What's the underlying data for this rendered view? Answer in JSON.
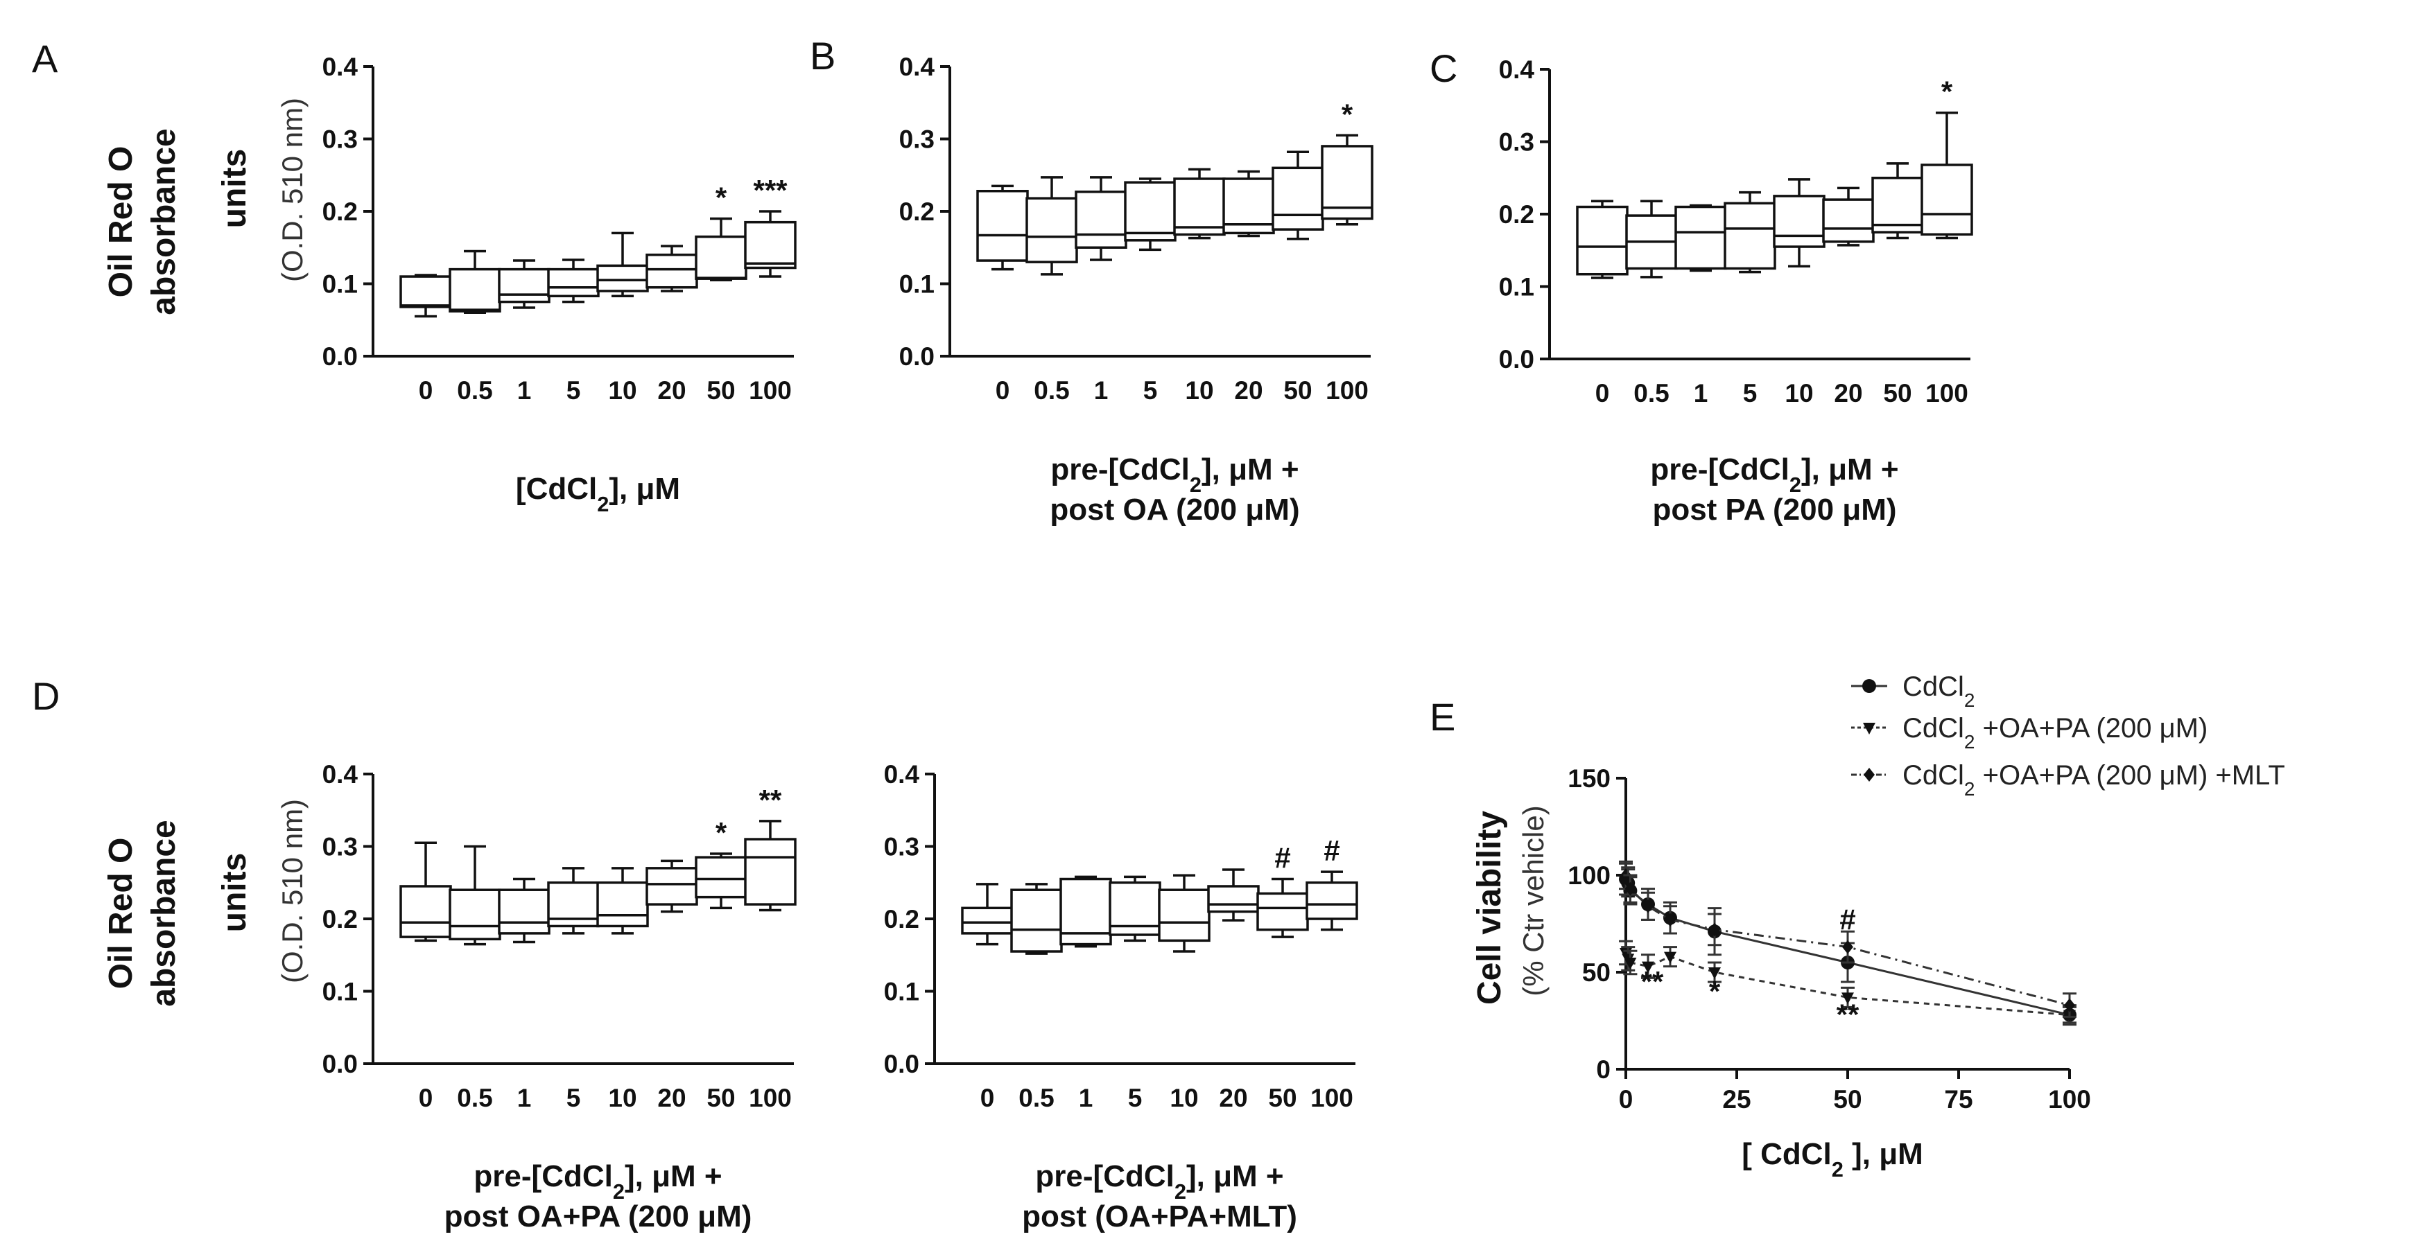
{
  "panel_letters": [
    "A",
    "B",
    "C",
    "D",
    "E"
  ],
  "shared": {
    "ylabel_bold": [
      "Oil Red O",
      "absorbance",
      "units"
    ],
    "ylabel_light": "(O.D. 510 nm)",
    "x_categories": [
      "0",
      "0.5",
      "1",
      "5",
      "10",
      "20",
      "50",
      "100"
    ],
    "y_ticks": [
      "0.0",
      "0.1",
      "0.2",
      "0.3",
      "0.4"
    ]
  },
  "chart_data": [
    {
      "id": "A",
      "type": "box",
      "ylim": [
        0,
        0.4
      ],
      "xlabel": [
        "[CdCl2], μM"
      ],
      "boxes": [
        {
          "min": 0.055,
          "q1": 0.068,
          "median": 0.07,
          "q3": 0.11,
          "max": 0.112
        },
        {
          "min": 0.06,
          "q1": 0.062,
          "median": 0.064,
          "q3": 0.12,
          "max": 0.145
        },
        {
          "min": 0.067,
          "q1": 0.075,
          "median": 0.085,
          "q3": 0.12,
          "max": 0.132
        },
        {
          "min": 0.075,
          "q1": 0.083,
          "median": 0.095,
          "q3": 0.12,
          "max": 0.133
        },
        {
          "min": 0.083,
          "q1": 0.09,
          "median": 0.105,
          "q3": 0.125,
          "max": 0.17
        },
        {
          "min": 0.09,
          "q1": 0.095,
          "median": 0.12,
          "q3": 0.14,
          "max": 0.152
        },
        {
          "min": 0.105,
          "q1": 0.107,
          "median": 0.108,
          "q3": 0.165,
          "max": 0.19
        },
        {
          "min": 0.11,
          "q1": 0.122,
          "median": 0.128,
          "q3": 0.185,
          "max": 0.2
        }
      ],
      "annotations": [
        {
          "cat": 6,
          "text": "*"
        },
        {
          "cat": 7,
          "text": "***"
        }
      ]
    },
    {
      "id": "B",
      "type": "box",
      "ylim": [
        0,
        0.4
      ],
      "xlabel": [
        "pre-[CdCl2], μM +",
        "post OA (200 μM)"
      ],
      "boxes": [
        {
          "min": 0.12,
          "q1": 0.132,
          "median": 0.167,
          "q3": 0.228,
          "max": 0.235
        },
        {
          "min": 0.113,
          "q1": 0.13,
          "median": 0.165,
          "q3": 0.218,
          "max": 0.247
        },
        {
          "min": 0.133,
          "q1": 0.15,
          "median": 0.168,
          "q3": 0.227,
          "max": 0.247
        },
        {
          "min": 0.147,
          "q1": 0.16,
          "median": 0.17,
          "q3": 0.24,
          "max": 0.245
        },
        {
          "min": 0.163,
          "q1": 0.168,
          "median": 0.178,
          "q3": 0.245,
          "max": 0.258
        },
        {
          "min": 0.166,
          "q1": 0.17,
          "median": 0.182,
          "q3": 0.245,
          "max": 0.255
        },
        {
          "min": 0.162,
          "q1": 0.175,
          "median": 0.195,
          "q3": 0.26,
          "max": 0.282
        },
        {
          "min": 0.182,
          "q1": 0.19,
          "median": 0.205,
          "q3": 0.29,
          "max": 0.305
        }
      ],
      "annotations": [
        {
          "cat": 7,
          "text": "*"
        }
      ]
    },
    {
      "id": "C",
      "type": "box",
      "ylim": [
        0,
        0.4
      ],
      "xlabel": [
        "pre-[CdCl2], μM +",
        "post PA (200 μM)"
      ],
      "boxes": [
        {
          "min": 0.112,
          "q1": 0.117,
          "median": 0.155,
          "q3": 0.21,
          "max": 0.218
        },
        {
          "min": 0.113,
          "q1": 0.125,
          "median": 0.162,
          "q3": 0.198,
          "max": 0.218
        },
        {
          "min": 0.122,
          "q1": 0.125,
          "median": 0.175,
          "q3": 0.21,
          "max": 0.212
        },
        {
          "min": 0.12,
          "q1": 0.125,
          "median": 0.18,
          "q3": 0.215,
          "max": 0.23
        },
        {
          "min": 0.128,
          "q1": 0.155,
          "median": 0.17,
          "q3": 0.225,
          "max": 0.248
        },
        {
          "min": 0.157,
          "q1": 0.162,
          "median": 0.18,
          "q3": 0.22,
          "max": 0.236
        },
        {
          "min": 0.167,
          "q1": 0.175,
          "median": 0.185,
          "q3": 0.25,
          "max": 0.27
        },
        {
          "min": 0.167,
          "q1": 0.172,
          "median": 0.2,
          "q3": 0.268,
          "max": 0.34
        }
      ],
      "annotations": [
        {
          "cat": 7,
          "text": "*"
        }
      ]
    },
    {
      "id": "D1",
      "type": "box",
      "ylim": [
        0,
        0.4
      ],
      "xlabel": [
        "pre-[CdCl2], μM +",
        "post OA+PA (200 μM)"
      ],
      "boxes": [
        {
          "min": 0.17,
          "q1": 0.175,
          "median": 0.195,
          "q3": 0.245,
          "max": 0.305
        },
        {
          "min": 0.165,
          "q1": 0.172,
          "median": 0.19,
          "q3": 0.24,
          "max": 0.3
        },
        {
          "min": 0.168,
          "q1": 0.18,
          "median": 0.195,
          "q3": 0.24,
          "max": 0.255
        },
        {
          "min": 0.18,
          "q1": 0.19,
          "median": 0.2,
          "q3": 0.25,
          "max": 0.27
        },
        {
          "min": 0.18,
          "q1": 0.19,
          "median": 0.205,
          "q3": 0.25,
          "max": 0.27
        },
        {
          "min": 0.21,
          "q1": 0.22,
          "median": 0.248,
          "q3": 0.27,
          "max": 0.28
        },
        {
          "min": 0.215,
          "q1": 0.23,
          "median": 0.255,
          "q3": 0.285,
          "max": 0.29
        },
        {
          "min": 0.212,
          "q1": 0.22,
          "median": 0.285,
          "q3": 0.31,
          "max": 0.335
        }
      ],
      "annotations": [
        {
          "cat": 6,
          "text": "*"
        },
        {
          "cat": 7,
          "text": "**"
        }
      ]
    },
    {
      "id": "D2",
      "type": "box",
      "ylim": [
        0,
        0.4
      ],
      "xlabel": [
        "pre-[CdCl2], μM +",
        "post (OA+PA+MLT)"
      ],
      "boxes": [
        {
          "min": 0.165,
          "q1": 0.18,
          "median": 0.195,
          "q3": 0.215,
          "max": 0.248
        },
        {
          "min": 0.152,
          "q1": 0.155,
          "median": 0.185,
          "q3": 0.24,
          "max": 0.248
        },
        {
          "min": 0.162,
          "q1": 0.165,
          "median": 0.18,
          "q3": 0.255,
          "max": 0.258
        },
        {
          "min": 0.17,
          "q1": 0.178,
          "median": 0.19,
          "q3": 0.25,
          "max": 0.258
        },
        {
          "min": 0.155,
          "q1": 0.17,
          "median": 0.195,
          "q3": 0.24,
          "max": 0.26
        },
        {
          "min": 0.198,
          "q1": 0.21,
          "median": 0.22,
          "q3": 0.245,
          "max": 0.268
        },
        {
          "min": 0.175,
          "q1": 0.185,
          "median": 0.215,
          "q3": 0.235,
          "max": 0.255
        },
        {
          "min": 0.185,
          "q1": 0.2,
          "median": 0.22,
          "q3": 0.25,
          "max": 0.265
        }
      ],
      "annotations": [
        {
          "cat": 6,
          "text": "#"
        },
        {
          "cat": 7,
          "text": "#"
        }
      ]
    },
    {
      "id": "E",
      "type": "line",
      "xlim": [
        0,
        100
      ],
      "ylim": [
        0,
        150
      ],
      "x_ticks": [
        "0",
        "25",
        "50",
        "75",
        "100"
      ],
      "y_ticks": [
        "0",
        "50",
        "100",
        "150"
      ],
      "xlabel": "[ CdCl2 ], μM",
      "ylabel_bold": "Cell viability",
      "ylabel_light": "(% Ctr vehicle)",
      "series": [
        {
          "name": "CdCl2",
          "x": [
            0,
            0.5,
            1,
            5,
            10,
            20,
            50,
            100
          ],
          "y": [
            98,
            96,
            92,
            85,
            78,
            71,
            55,
            28
          ],
          "err": [
            8,
            7,
            7,
            8,
            8,
            12,
            10,
            5
          ]
        },
        {
          "name": "CdCl2 +OA+PA (200 μM)",
          "x": [
            0,
            0.5,
            1,
            5,
            10,
            20,
            50,
            100
          ],
          "y": [
            60,
            57,
            55,
            53,
            58,
            50,
            37,
            28
          ],
          "err": [
            6,
            6,
            6,
            6,
            5,
            5,
            5,
            4
          ]
        },
        {
          "name": "CdCl2 +OA+PA (200 μM) +MLT",
          "x": [
            0,
            0.5,
            1,
            5,
            10,
            20,
            50,
            100
          ],
          "y": [
            100,
            97,
            93,
            84,
            77,
            72,
            63,
            33
          ],
          "err": [
            7,
            7,
            7,
            7,
            7,
            8,
            8,
            6
          ]
        }
      ],
      "annotations": [
        {
          "x": 5,
          "y": 40,
          "text": "**"
        },
        {
          "x": 20,
          "y": 35,
          "text": "*"
        },
        {
          "x": 50,
          "y": 23,
          "text": "**"
        },
        {
          "x": 50,
          "y": 72,
          "text": "#"
        }
      ]
    }
  ]
}
